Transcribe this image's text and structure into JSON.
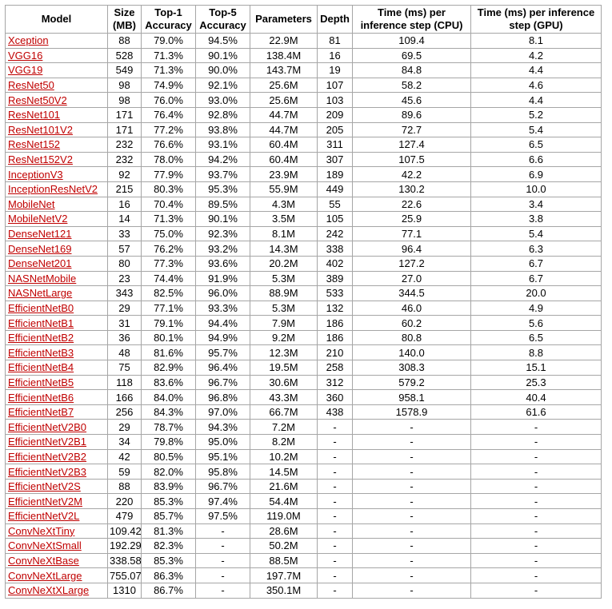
{
  "headers": [
    "Model",
    "Size (MB)",
    "Top-1 Accuracy",
    "Top-5 Accuracy",
    "Parameters",
    "Depth",
    "Time (ms) per inference step (CPU)",
    "Time (ms) per inference step (GPU)"
  ],
  "rows": [
    [
      "Xception",
      "88",
      "79.0%",
      "94.5%",
      "22.9M",
      "81",
      "109.4",
      "8.1"
    ],
    [
      "VGG16",
      "528",
      "71.3%",
      "90.1%",
      "138.4M",
      "16",
      "69.5",
      "4.2"
    ],
    [
      "VGG19",
      "549",
      "71.3%",
      "90.0%",
      "143.7M",
      "19",
      "84.8",
      "4.4"
    ],
    [
      "ResNet50",
      "98",
      "74.9%",
      "92.1%",
      "25.6M",
      "107",
      "58.2",
      "4.6"
    ],
    [
      "ResNet50V2",
      "98",
      "76.0%",
      "93.0%",
      "25.6M",
      "103",
      "45.6",
      "4.4"
    ],
    [
      "ResNet101",
      "171",
      "76.4%",
      "92.8%",
      "44.7M",
      "209",
      "89.6",
      "5.2"
    ],
    [
      "ResNet101V2",
      "171",
      "77.2%",
      "93.8%",
      "44.7M",
      "205",
      "72.7",
      "5.4"
    ],
    [
      "ResNet152",
      "232",
      "76.6%",
      "93.1%",
      "60.4M",
      "311",
      "127.4",
      "6.5"
    ],
    [
      "ResNet152V2",
      "232",
      "78.0%",
      "94.2%",
      "60.4M",
      "307",
      "107.5",
      "6.6"
    ],
    [
      "InceptionV3",
      "92",
      "77.9%",
      "93.7%",
      "23.9M",
      "189",
      "42.2",
      "6.9"
    ],
    [
      "InceptionResNetV2",
      "215",
      "80.3%",
      "95.3%",
      "55.9M",
      "449",
      "130.2",
      "10.0"
    ],
    [
      "MobileNet",
      "16",
      "70.4%",
      "89.5%",
      "4.3M",
      "55",
      "22.6",
      "3.4"
    ],
    [
      "MobileNetV2",
      "14",
      "71.3%",
      "90.1%",
      "3.5M",
      "105",
      "25.9",
      "3.8"
    ],
    [
      "DenseNet121",
      "33",
      "75.0%",
      "92.3%",
      "8.1M",
      "242",
      "77.1",
      "5.4"
    ],
    [
      "DenseNet169",
      "57",
      "76.2%",
      "93.2%",
      "14.3M",
      "338",
      "96.4",
      "6.3"
    ],
    [
      "DenseNet201",
      "80",
      "77.3%",
      "93.6%",
      "20.2M",
      "402",
      "127.2",
      "6.7"
    ],
    [
      "NASNetMobile",
      "23",
      "74.4%",
      "91.9%",
      "5.3M",
      "389",
      "27.0",
      "6.7"
    ],
    [
      "NASNetLarge",
      "343",
      "82.5%",
      "96.0%",
      "88.9M",
      "533",
      "344.5",
      "20.0"
    ],
    [
      "EfficientNetB0",
      "29",
      "77.1%",
      "93.3%",
      "5.3M",
      "132",
      "46.0",
      "4.9"
    ],
    [
      "EfficientNetB1",
      "31",
      "79.1%",
      "94.4%",
      "7.9M",
      "186",
      "60.2",
      "5.6"
    ],
    [
      "EfficientNetB2",
      "36",
      "80.1%",
      "94.9%",
      "9.2M",
      "186",
      "80.8",
      "6.5"
    ],
    [
      "EfficientNetB3",
      "48",
      "81.6%",
      "95.7%",
      "12.3M",
      "210",
      "140.0",
      "8.8"
    ],
    [
      "EfficientNetB4",
      "75",
      "82.9%",
      "96.4%",
      "19.5M",
      "258",
      "308.3",
      "15.1"
    ],
    [
      "EfficientNetB5",
      "118",
      "83.6%",
      "96.7%",
      "30.6M",
      "312",
      "579.2",
      "25.3"
    ],
    [
      "EfficientNetB6",
      "166",
      "84.0%",
      "96.8%",
      "43.3M",
      "360",
      "958.1",
      "40.4"
    ],
    [
      "EfficientNetB7",
      "256",
      "84.3%",
      "97.0%",
      "66.7M",
      "438",
      "1578.9",
      "61.6"
    ],
    [
      "EfficientNetV2B0",
      "29",
      "78.7%",
      "94.3%",
      "7.2M",
      "-",
      "-",
      "-"
    ],
    [
      "EfficientNetV2B1",
      "34",
      "79.8%",
      "95.0%",
      "8.2M",
      "-",
      "-",
      "-"
    ],
    [
      "EfficientNetV2B2",
      "42",
      "80.5%",
      "95.1%",
      "10.2M",
      "-",
      "-",
      "-"
    ],
    [
      "EfficientNetV2B3",
      "59",
      "82.0%",
      "95.8%",
      "14.5M",
      "-",
      "-",
      "-"
    ],
    [
      "EfficientNetV2S",
      "88",
      "83.9%",
      "96.7%",
      "21.6M",
      "-",
      "-",
      "-"
    ],
    [
      "EfficientNetV2M",
      "220",
      "85.3%",
      "97.4%",
      "54.4M",
      "-",
      "-",
      "-"
    ],
    [
      "EfficientNetV2L",
      "479",
      "85.7%",
      "97.5%",
      "119.0M",
      "-",
      "-",
      "-"
    ],
    [
      "ConvNeXtTiny",
      "109.42",
      "81.3%",
      "-",
      "28.6M",
      "-",
      "-",
      "-"
    ],
    [
      "ConvNeXtSmall",
      "192.29",
      "82.3%",
      "-",
      "50.2M",
      "-",
      "-",
      "-"
    ],
    [
      "ConvNeXtBase",
      "338.58",
      "85.3%",
      "-",
      "88.5M",
      "-",
      "-",
      "-"
    ],
    [
      "ConvNeXtLarge",
      "755.07",
      "86.3%",
      "-",
      "197.7M",
      "-",
      "-",
      "-"
    ],
    [
      "ConvNeXtXLarge",
      "1310",
      "86.7%",
      "-",
      "350.1M",
      "-",
      "-",
      "-"
    ]
  ],
  "colors": {
    "link": "#c00000",
    "border": "#a6a6a6"
  }
}
